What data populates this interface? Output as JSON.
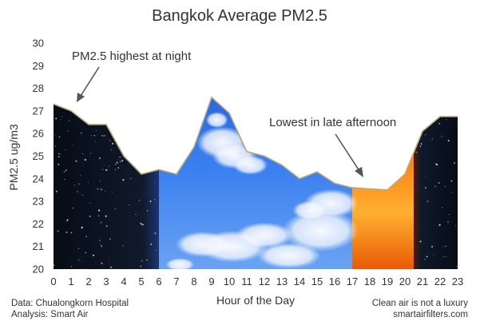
{
  "chart_data": {
    "type": "area",
    "title": "Bangkok Average PM2.5",
    "xlabel": "Hour of the Day",
    "ylabel": "PM2.5 ug/m3",
    "x": [
      0,
      1,
      2,
      3,
      4,
      5,
      6,
      7,
      8,
      9,
      10,
      11,
      12,
      13,
      14,
      15,
      16,
      17,
      18,
      19,
      20,
      21,
      22,
      23
    ],
    "series": [
      {
        "values": [
          27.3,
          27.0,
          26.4,
          26.4,
          25.0,
          24.2,
          24.4,
          24.2,
          25.4,
          27.6,
          26.9,
          25.2,
          25.0,
          24.6,
          24.0,
          24.3,
          23.8,
          23.6,
          23.55,
          23.5,
          24.2,
          26.1,
          26.75,
          26.75
        ]
      }
    ],
    "ylim": [
      20,
      30
    ],
    "xlim": [
      0,
      23
    ],
    "yticks": [
      20,
      21,
      22,
      23,
      24,
      25,
      26,
      27,
      28,
      29,
      30
    ],
    "grid": false,
    "line_color": "#b8a97a",
    "annotations": [
      {
        "text": "PM2.5 highest at night",
        "points_to_hour": 1
      },
      {
        "text": "Lowest in late afternoon",
        "points_to_hour": 17.5
      }
    ],
    "background_bands": [
      {
        "name": "night",
        "from_hour": 0,
        "to_hour": 6,
        "color": "#0d1522"
      },
      {
        "name": "day-sky",
        "from_hour": 6,
        "to_hour": 17,
        "color": "#2e6fe0"
      },
      {
        "name": "sunset",
        "from_hour": 17,
        "to_hour": 20.5,
        "color": "#ff7a10"
      },
      {
        "name": "night",
        "from_hour": 20.5,
        "to_hour": 23,
        "color": "#0d1522"
      }
    ]
  },
  "footer": {
    "data_source": "Data: Chualongkorn Hospital",
    "analysis": "Analysis: Smart Air",
    "tagline": "Clean air is not a luxury",
    "website": "smartairfilters.com"
  }
}
